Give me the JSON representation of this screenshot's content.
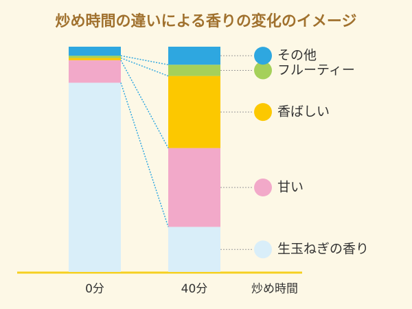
{
  "chart_data": {
    "type": "stacked_bar",
    "title": "炒め時間の違いによる香りの変化のイメージ",
    "x_label": "炒め時間",
    "categories": [
      "0分",
      "40分"
    ],
    "series": [
      {
        "name": "生玉ねぎの香り",
        "color": "#d9eef9",
        "values": [
          84,
          20
        ]
      },
      {
        "name": "甘い",
        "color": "#f2a9c9",
        "values": [
          10,
          35
        ]
      },
      {
        "name": "香ばしい",
        "color": "#fcc800",
        "values": [
          1,
          32
        ]
      },
      {
        "name": "フルーティー",
        "color": "#a5d05a",
        "values": [
          1,
          5
        ]
      },
      {
        "name": "その他",
        "color": "#2ea7e0",
        "values": [
          4,
          8
        ]
      }
    ],
    "ylim": [
      0,
      100
    ]
  }
}
